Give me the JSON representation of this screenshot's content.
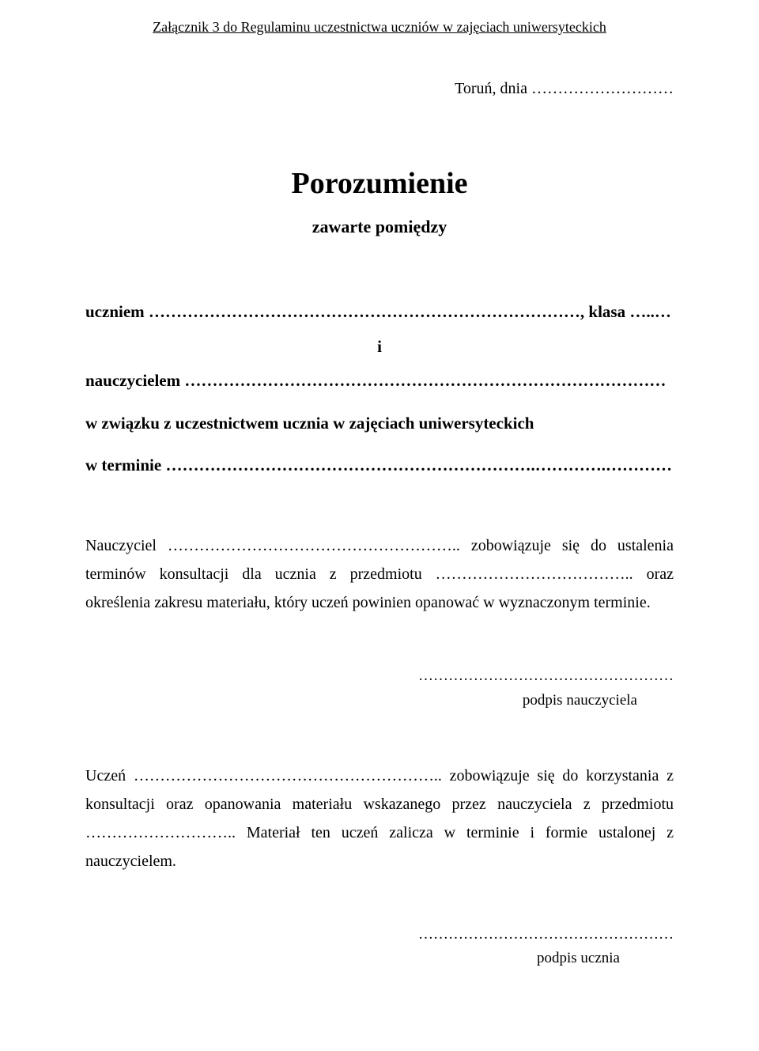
{
  "header": "Załącznik 3 do Regulaminu uczestnictwa uczniów w zajęciach uniwersyteckich",
  "date_line": "Toruń, dnia ………………………",
  "title": "Porozumienie",
  "subtitle": "zawarte pomiędzy",
  "student_line": "uczniem ……………………………………………………………………, klasa …..…",
  "and": "i",
  "teacher_line": "nauczycielem ……………………………………………………………………………",
  "context_line_1": "w związku z uczestnictwem ucznia w zajęciach uniwersyteckich",
  "context_line_2": "w terminie ………………………………………………………….………….…………",
  "paragraph_1": "Nauczyciel ……………………………………………….. zobowiązuje się do ustalenia terminów konsultacji dla ucznia z przedmiotu ……………………………….. oraz określenia zakresu materiału, który uczeń powinien opanować w wyznaczonym terminie.",
  "signature_1_dots": "……………………………………………",
  "signature_1_label": "podpis nauczyciela",
  "paragraph_2": "Uczeń ………………………………………………….. zobowiązuje się do korzystania z konsultacji oraz opanowania materiału wskazanego przez nauczyciela z przedmiotu ……………………….. Materiał ten uczeń zalicza w terminie i formie ustalonej z nauczycielem.",
  "signature_2_dots": "……………………………………………",
  "signature_2_label": "podpis ucznia"
}
